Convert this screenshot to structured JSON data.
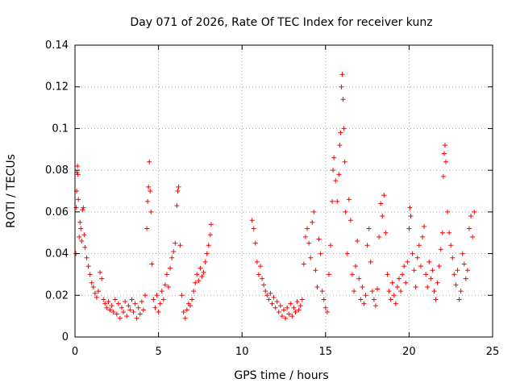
{
  "chart_data": {
    "type": "scatter",
    "title": "Day 071 of 2026, Rate Of TEC Index for receiver kunz",
    "xlabel": "GPS time / hours",
    "ylabel": "ROTI / TECUs",
    "xlim": [
      0,
      25
    ],
    "ylim": [
      0,
      0.14
    ],
    "xticks": [
      "0",
      "5",
      "10",
      "15",
      "20",
      "25"
    ],
    "yticks": [
      "0",
      "0.02",
      "0.04",
      "0.06",
      "0.08",
      "0.1",
      "0.12",
      "0.14"
    ],
    "grid": true,
    "marker": "plus",
    "color": "#ff0000",
    "series": [
      {
        "points": [
          [
            0.05,
            0.04
          ],
          [
            0.08,
            0.062
          ],
          [
            0.1,
            0.07
          ],
          [
            0.12,
            0.079
          ],
          [
            0.15,
            0.082
          ],
          [
            0.18,
            0.078
          ],
          [
            0.2,
            0.066
          ],
          [
            0.25,
            0.048
          ],
          [
            0.3,
            0.055
          ],
          [
            0.35,
            0.052
          ],
          [
            0.4,
            0.046
          ],
          [
            0.45,
            0.061
          ],
          [
            0.5,
            0.062
          ],
          [
            0.55,
            0.049
          ],
          [
            0.6,
            0.043
          ],
          [
            0.7,
            0.038
          ],
          [
            0.8,
            0.034
          ],
          [
            0.9,
            0.03
          ],
          [
            1.0,
            0.026
          ],
          [
            1.1,
            0.024
          ],
          [
            1.2,
            0.021
          ],
          [
            1.3,
            0.019
          ],
          [
            1.4,
            0.022
          ],
          [
            1.5,
            0.031
          ],
          [
            1.6,
            0.028
          ],
          [
            1.7,
            0.018
          ],
          [
            1.8,
            0.016
          ],
          [
            1.9,
            0.014
          ],
          [
            2.0,
            0.017
          ],
          [
            2.1,
            0.013
          ],
          [
            2.2,
            0.015
          ],
          [
            2.3,
            0.012
          ],
          [
            2.4,
            0.018
          ],
          [
            2.5,
            0.011
          ],
          [
            2.6,
            0.016
          ],
          [
            2.7,
            0.009
          ],
          [
            2.8,
            0.014
          ],
          [
            2.9,
            0.012
          ],
          [
            3.0,
            0.017
          ],
          [
            3.1,
            0.01
          ],
          [
            3.2,
            0.015
          ],
          [
            3.3,
            0.013
          ],
          [
            3.4,
            0.018
          ],
          [
            3.5,
            0.012
          ],
          [
            3.6,
            0.016
          ],
          [
            3.7,
            0.009
          ],
          [
            3.8,
            0.014
          ],
          [
            3.9,
            0.011
          ],
          [
            4.0,
            0.017
          ],
          [
            4.1,
            0.013
          ],
          [
            4.2,
            0.02
          ],
          [
            4.3,
            0.052
          ],
          [
            4.35,
            0.065
          ],
          [
            4.4,
            0.072
          ],
          [
            4.45,
            0.084
          ],
          [
            4.5,
            0.07
          ],
          [
            4.55,
            0.06
          ],
          [
            4.6,
            0.035
          ],
          [
            4.7,
            0.018
          ],
          [
            4.8,
            0.014
          ],
          [
            4.9,
            0.02
          ],
          [
            5.0,
            0.012
          ],
          [
            5.1,
            0.016
          ],
          [
            5.2,
            0.022
          ],
          [
            5.3,
            0.018
          ],
          [
            5.4,
            0.025
          ],
          [
            5.5,
            0.03
          ],
          [
            5.6,
            0.024
          ],
          [
            5.7,
            0.033
          ],
          [
            5.8,
            0.038
          ],
          [
            5.9,
            0.041
          ],
          [
            6.0,
            0.045
          ],
          [
            6.1,
            0.063
          ],
          [
            6.15,
            0.07
          ],
          [
            6.2,
            0.072
          ],
          [
            6.3,
            0.044
          ],
          [
            6.4,
            0.02
          ],
          [
            6.5,
            0.012
          ],
          [
            6.6,
            0.009
          ],
          [
            6.7,
            0.013
          ],
          [
            6.8,
            0.016
          ],
          [
            6.9,
            0.015
          ],
          [
            7.0,
            0.018
          ],
          [
            7.1,
            0.022
          ],
          [
            7.2,
            0.026
          ],
          [
            7.3,
            0.03
          ],
          [
            7.4,
            0.027
          ],
          [
            7.5,
            0.033
          ],
          [
            7.6,
            0.029
          ],
          [
            7.7,
            0.031
          ],
          [
            7.8,
            0.036
          ],
          [
            7.9,
            0.04
          ],
          [
            8.0,
            0.044
          ],
          [
            8.1,
            0.049
          ],
          [
            8.15,
            0.054
          ],
          [
            10.6,
            0.056
          ],
          [
            10.7,
            0.052
          ],
          [
            10.8,
            0.045
          ],
          [
            10.9,
            0.036
          ],
          [
            11.0,
            0.03
          ],
          [
            11.1,
            0.034
          ],
          [
            11.2,
            0.028
          ],
          [
            11.3,
            0.025
          ],
          [
            11.4,
            0.022
          ],
          [
            11.5,
            0.02
          ],
          [
            11.6,
            0.018
          ],
          [
            11.7,
            0.021
          ],
          [
            11.8,
            0.016
          ],
          [
            11.9,
            0.019
          ],
          [
            12.0,
            0.014
          ],
          [
            12.1,
            0.017
          ],
          [
            12.2,
            0.012
          ],
          [
            12.3,
            0.015
          ],
          [
            12.4,
            0.01
          ],
          [
            12.5,
            0.013
          ],
          [
            12.6,
            0.009
          ],
          [
            12.7,
            0.014
          ],
          [
            12.8,
            0.011
          ],
          [
            12.9,
            0.016
          ],
          [
            13.0,
            0.01
          ],
          [
            13.1,
            0.014
          ],
          [
            13.2,
            0.012
          ],
          [
            13.3,
            0.017
          ],
          [
            13.4,
            0.013
          ],
          [
            13.5,
            0.015
          ],
          [
            13.6,
            0.018
          ],
          [
            13.7,
            0.035
          ],
          [
            13.8,
            0.048
          ],
          [
            13.9,
            0.052
          ],
          [
            14.0,
            0.045
          ],
          [
            14.1,
            0.038
          ],
          [
            14.2,
            0.055
          ],
          [
            14.3,
            0.06
          ],
          [
            14.4,
            0.032
          ],
          [
            14.5,
            0.024
          ],
          [
            14.6,
            0.047
          ],
          [
            14.7,
            0.04
          ],
          [
            14.8,
            0.022
          ],
          [
            14.9,
            0.018
          ],
          [
            15.0,
            0.014
          ],
          [
            15.1,
            0.012
          ],
          [
            15.2,
            0.03
          ],
          [
            15.3,
            0.044
          ],
          [
            15.4,
            0.065
          ],
          [
            15.45,
            0.08
          ],
          [
            15.5,
            0.086
          ],
          [
            15.6,
            0.075
          ],
          [
            15.7,
            0.065
          ],
          [
            15.8,
            0.078
          ],
          [
            15.85,
            0.092
          ],
          [
            15.9,
            0.098
          ],
          [
            15.95,
            0.12
          ],
          [
            16.0,
            0.126
          ],
          [
            16.05,
            0.114
          ],
          [
            16.1,
            0.1
          ],
          [
            16.15,
            0.084
          ],
          [
            16.2,
            0.06
          ],
          [
            16.3,
            0.04
          ],
          [
            16.4,
            0.066
          ],
          [
            16.5,
            0.056
          ],
          [
            16.6,
            0.03
          ],
          [
            16.7,
            0.022
          ],
          [
            16.8,
            0.034
          ],
          [
            16.9,
            0.046
          ],
          [
            17.0,
            0.028
          ],
          [
            17.1,
            0.018
          ],
          [
            17.2,
            0.024
          ],
          [
            17.3,
            0.016
          ],
          [
            17.4,
            0.02
          ],
          [
            17.5,
            0.044
          ],
          [
            17.6,
            0.052
          ],
          [
            17.7,
            0.036
          ],
          [
            17.8,
            0.022
          ],
          [
            17.9,
            0.018
          ],
          [
            18.0,
            0.015
          ],
          [
            18.1,
            0.023
          ],
          [
            18.2,
            0.048
          ],
          [
            18.3,
            0.064
          ],
          [
            18.4,
            0.058
          ],
          [
            18.5,
            0.068
          ],
          [
            18.6,
            0.05
          ],
          [
            18.7,
            0.03
          ],
          [
            18.8,
            0.022
          ],
          [
            18.9,
            0.018
          ],
          [
            19.0,
            0.026
          ],
          [
            19.1,
            0.02
          ],
          [
            19.2,
            0.016
          ],
          [
            19.3,
            0.024
          ],
          [
            19.4,
            0.028
          ],
          [
            19.5,
            0.022
          ],
          [
            19.6,
            0.03
          ],
          [
            19.7,
            0.034
          ],
          [
            19.8,
            0.026
          ],
          [
            19.9,
            0.036
          ],
          [
            20.0,
            0.052
          ],
          [
            20.05,
            0.062
          ],
          [
            20.1,
            0.058
          ],
          [
            20.2,
            0.04
          ],
          [
            20.3,
            0.032
          ],
          [
            20.4,
            0.024
          ],
          [
            20.5,
            0.038
          ],
          [
            20.6,
            0.044
          ],
          [
            20.7,
            0.034
          ],
          [
            20.8,
            0.048
          ],
          [
            20.9,
            0.053
          ],
          [
            21.0,
            0.03
          ],
          [
            21.1,
            0.024
          ],
          [
            21.2,
            0.036
          ],
          [
            21.3,
            0.028
          ],
          [
            21.4,
            0.032
          ],
          [
            21.5,
            0.022
          ],
          [
            21.6,
            0.018
          ],
          [
            21.7,
            0.026
          ],
          [
            21.8,
            0.034
          ],
          [
            21.9,
            0.042
          ],
          [
            22.0,
            0.05
          ],
          [
            22.05,
            0.077
          ],
          [
            22.1,
            0.088
          ],
          [
            22.15,
            0.092
          ],
          [
            22.2,
            0.084
          ],
          [
            22.3,
            0.06
          ],
          [
            22.4,
            0.05
          ],
          [
            22.5,
            0.044
          ],
          [
            22.6,
            0.038
          ],
          [
            22.7,
            0.03
          ],
          [
            22.8,
            0.025
          ],
          [
            22.9,
            0.032
          ],
          [
            23.0,
            0.018
          ],
          [
            23.1,
            0.022
          ],
          [
            23.2,
            0.04
          ],
          [
            23.3,
            0.035
          ],
          [
            23.4,
            0.028
          ],
          [
            23.5,
            0.032
          ],
          [
            23.6,
            0.052
          ],
          [
            23.7,
            0.058
          ],
          [
            23.8,
            0.048
          ],
          [
            23.9,
            0.06
          ]
        ]
      }
    ]
  }
}
